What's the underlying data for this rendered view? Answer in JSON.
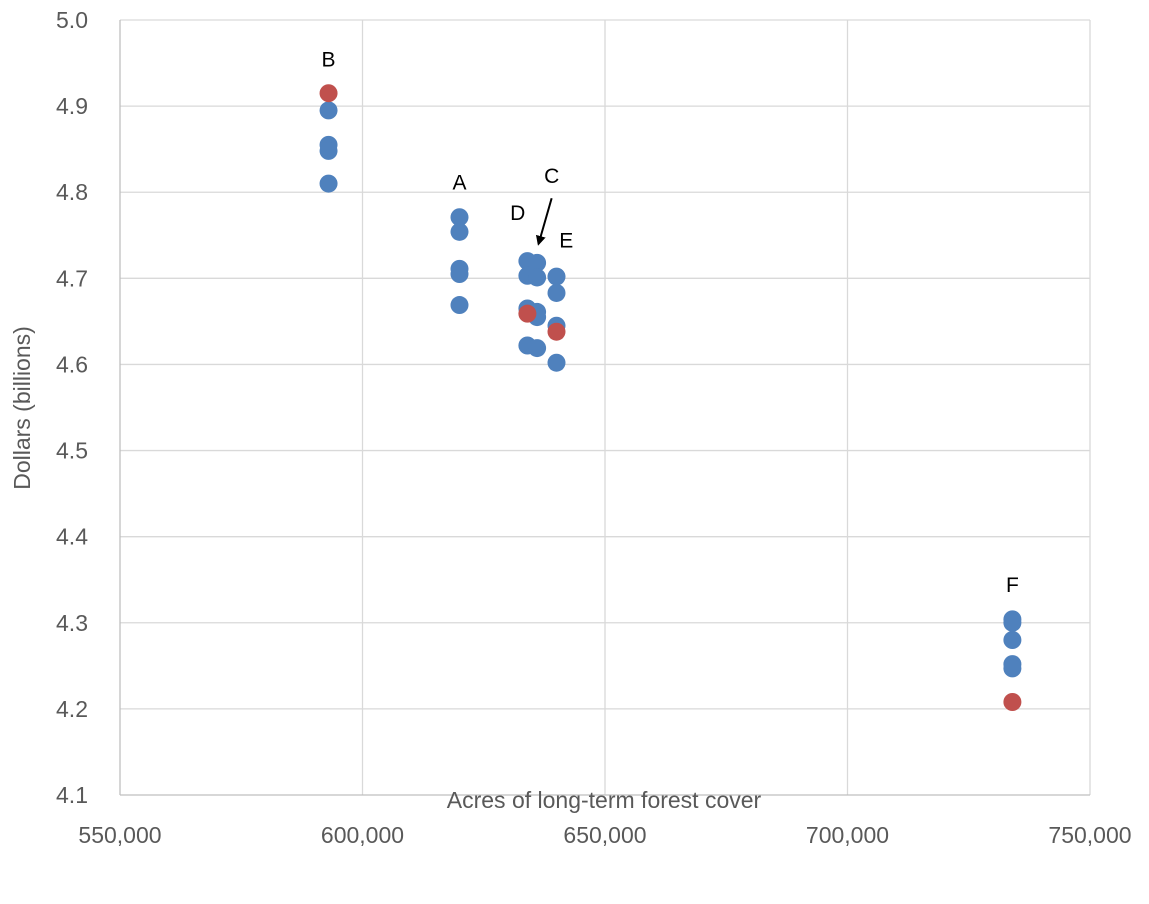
{
  "chart_data": {
    "type": "scatter",
    "title": "",
    "xlabel": "Acres of long-term forest cover",
    "ylabel": "Dollars (billions)",
    "xlim": [
      550000,
      750000
    ],
    "ylim": [
      4.1,
      5.0
    ],
    "x_ticks": [
      550000,
      600000,
      650000,
      700000,
      750000
    ],
    "x_tick_labels": [
      "550,000",
      "600,000",
      "650,000",
      "700,000",
      "750,000"
    ],
    "y_ticks": [
      4.1,
      4.2,
      4.3,
      4.4,
      4.5,
      4.6,
      4.7,
      4.8,
      4.9,
      5.0
    ],
    "y_tick_labels": [
      "4.1",
      "4.2",
      "4.3",
      "4.4",
      "4.5",
      "4.6",
      "4.7",
      "4.8",
      "4.9",
      "5.0"
    ],
    "grid": true,
    "legend": "none",
    "colors": {
      "blue_series": "#4f81bd",
      "red_series": "#c0504d"
    },
    "series": [
      {
        "color": "#4f81bd",
        "points": [
          {
            "x": 593000,
            "y": 4.895
          },
          {
            "x": 593000,
            "y": 4.855
          },
          {
            "x": 593000,
            "y": 4.848
          },
          {
            "x": 593000,
            "y": 4.81
          },
          {
            "x": 620000,
            "y": 4.771
          },
          {
            "x": 620000,
            "y": 4.754
          },
          {
            "x": 620000,
            "y": 4.711
          },
          {
            "x": 620000,
            "y": 4.705
          },
          {
            "x": 620000,
            "y": 4.669
          },
          {
            "x": 634000,
            "y": 4.72
          },
          {
            "x": 634000,
            "y": 4.703
          },
          {
            "x": 634000,
            "y": 4.665
          },
          {
            "x": 634000,
            "y": 4.622
          },
          {
            "x": 636000,
            "y": 4.718
          },
          {
            "x": 636000,
            "y": 4.701
          },
          {
            "x": 636000,
            "y": 4.661
          },
          {
            "x": 636000,
            "y": 4.655
          },
          {
            "x": 636000,
            "y": 4.619
          },
          {
            "x": 640000,
            "y": 4.702
          },
          {
            "x": 640000,
            "y": 4.683
          },
          {
            "x": 640000,
            "y": 4.645
          },
          {
            "x": 640000,
            "y": 4.602
          },
          {
            "x": 734000,
            "y": 4.304
          },
          {
            "x": 734000,
            "y": 4.3
          },
          {
            "x": 734000,
            "y": 4.28
          },
          {
            "x": 734000,
            "y": 4.252
          },
          {
            "x": 734000,
            "y": 4.247
          }
        ]
      },
      {
        "color": "#c0504d",
        "points": [
          {
            "x": 593000,
            "y": 4.915
          },
          {
            "x": 634000,
            "y": 4.659
          },
          {
            "x": 640000,
            "y": 4.638
          },
          {
            "x": 734000,
            "y": 4.208
          }
        ]
      }
    ],
    "annotations": [
      {
        "text": "B",
        "x": 593000,
        "y": 4.946
      },
      {
        "text": "A",
        "x": 620000,
        "y": 4.803
      },
      {
        "text": "D",
        "x": 632000,
        "y": 4.768
      },
      {
        "text": "C",
        "x": 639000,
        "y": 4.811
      },
      {
        "text": "E",
        "x": 642000,
        "y": 4.736
      },
      {
        "text": "F",
        "x": 734000,
        "y": 4.336
      }
    ],
    "arrows": [
      {
        "from_x": 639000,
        "from_y": 4.793,
        "to_x": 636300,
        "to_y": 4.74
      }
    ]
  }
}
